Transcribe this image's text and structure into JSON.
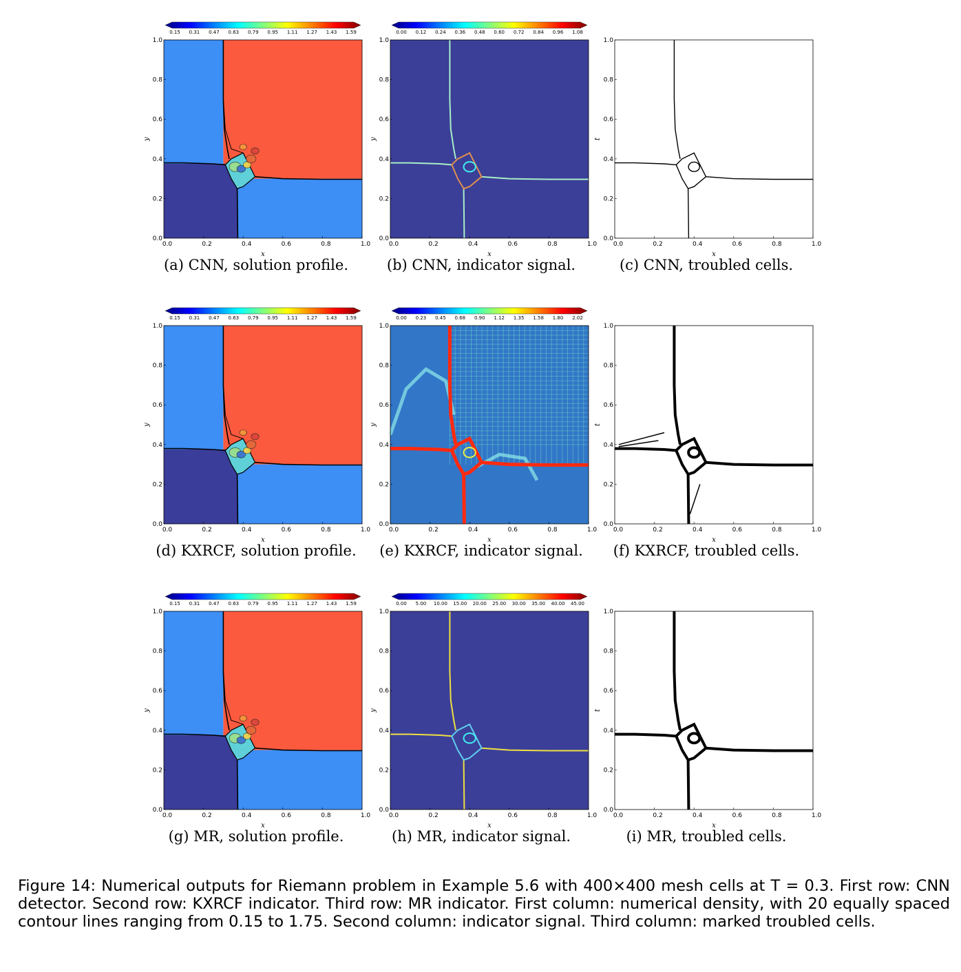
{
  "figure": {
    "colorbars": {
      "solution": [
        "0.15",
        "0.31",
        "0.47",
        "0.63",
        "0.79",
        "0.95",
        "1.11",
        "1.27",
        "1.43",
        "1.59"
      ],
      "cnn_signal": [
        "0.00",
        "0.12",
        "0.24",
        "0.36",
        "0.48",
        "0.60",
        "0.72",
        "0.84",
        "0.96",
        "1.08"
      ],
      "kxrcf_signal": [
        "0.00",
        "0.23",
        "0.45",
        "0.68",
        "0.90",
        "1.12",
        "1.35",
        "1.58",
        "1.80",
        "2.02"
      ],
      "mr_signal": [
        "0.00",
        "5.00",
        "10.00",
        "15.00",
        "20.00",
        "25.00",
        "30.00",
        "35.00",
        "40.00",
        "45.00"
      ]
    },
    "axis": {
      "x_ticks": [
        "0.0",
        "0.2",
        "0.4",
        "0.6",
        "0.8",
        "1.0"
      ],
      "y_ticks": [
        "0.0",
        "0.2",
        "0.4",
        "0.6",
        "0.8",
        "1.0"
      ],
      "x_label": "x",
      "y_label": "y",
      "t_label": "t"
    },
    "subcaptions": [
      "(a) CNN, solution profile.",
      "(b) CNN, indicator signal.",
      "(c) CNN, troubled cells.",
      "(d) KXRCF, solution profile.",
      "(e) KXRCF, indicator signal.",
      "(f) KXRCF, troubled cells.",
      "(g) MR, solution profile.",
      "(h) MR, indicator signal.",
      "(i) MR, troubled cells."
    ],
    "caption": "Figure 14: Numerical outputs for Riemann problem in Example 5.6 with 400×400 mesh cells at T = 0.3. First row: CNN detector. Second row: KXRCF indicator. Third row: MR indicator. First column: numerical density, with 20 equally spaced contour lines ranging from 0.15 to 1.75. Second column: indicator signal. Third column: marked troubled cells.",
    "colors": {
      "top_left": "#3d8ef5",
      "top_right": "#fb5a3e",
      "bottom_left": "#3b3d9a",
      "bottom_right": "#3d8ef5",
      "signal_background": "#3c3f98"
    }
  }
}
